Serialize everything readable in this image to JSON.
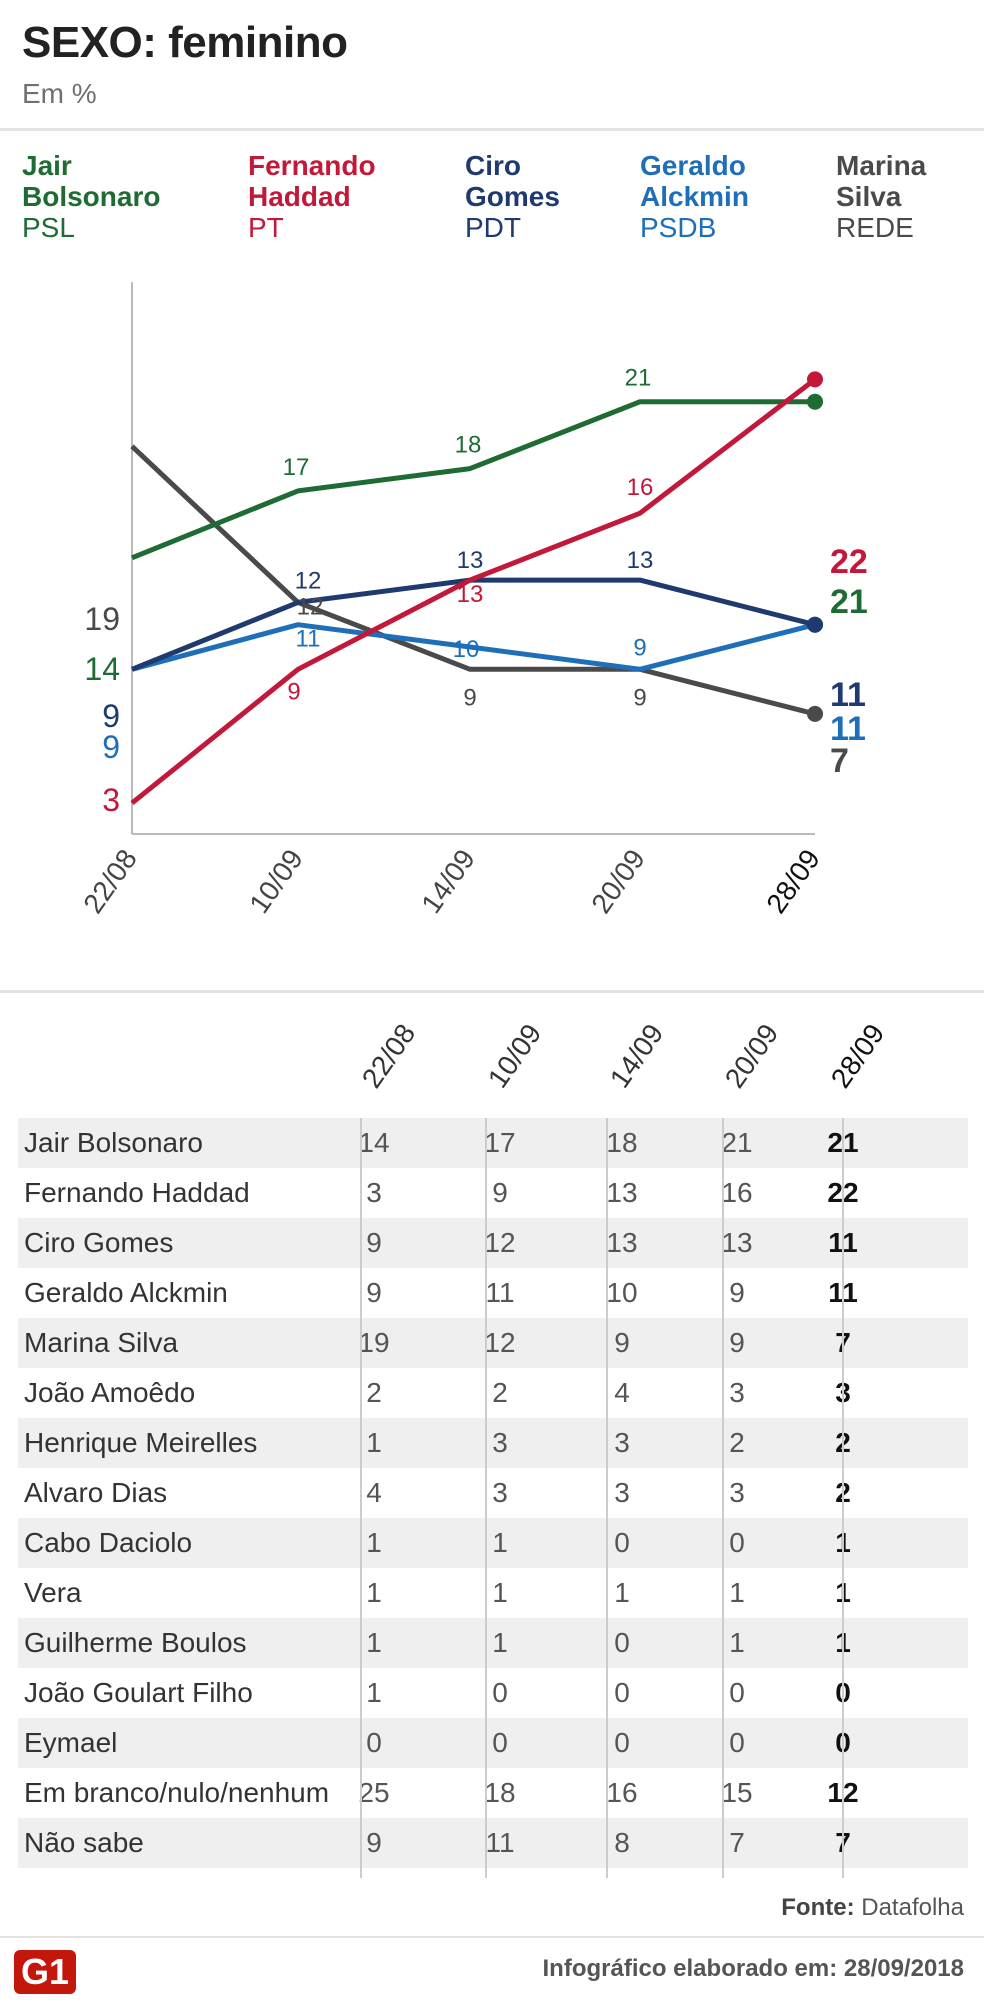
{
  "header": {
    "title": "SEXO: feminino",
    "subtitle": "Em %"
  },
  "legend": [
    {
      "name_line1": "Jair",
      "name_line2": "Bolsonaro",
      "party": "PSL",
      "color": "#1e6b33"
    },
    {
      "name_line1": "Fernando",
      "name_line2": "Haddad",
      "party": "PT",
      "color": "#c2183a"
    },
    {
      "name_line1": "Ciro",
      "name_line2": "Gomes",
      "party": "PDT",
      "color": "#1f3a6e"
    },
    {
      "name_line1": "Geraldo",
      "name_line2": "Alckmin",
      "party": "PSDB",
      "color": "#1f6fb8"
    },
    {
      "name_line1": "Marina",
      "name_line2": "Silva",
      "party": "REDE",
      "color": "#4a4a4a"
    }
  ],
  "chart_data": {
    "type": "line",
    "title": "SEXO: feminino",
    "ylabel": "Em %",
    "categories": [
      "22/08",
      "10/09",
      "14/09",
      "20/09",
      "28/09"
    ],
    "series": [
      {
        "name": "Jair Bolsonaro",
        "color": "#1e6b33",
        "values": [
          14,
          17,
          18,
          21,
          21
        ]
      },
      {
        "name": "Fernando Haddad",
        "color": "#c2183a",
        "values": [
          3,
          9,
          13,
          16,
          22
        ]
      },
      {
        "name": "Ciro Gomes",
        "color": "#1f3a6e",
        "values": [
          9,
          12,
          13,
          13,
          11
        ]
      },
      {
        "name": "Geraldo Alckmin",
        "color": "#1f6fb8",
        "values": [
          9,
          11,
          10,
          9,
          11
        ]
      },
      {
        "name": "Marina Silva",
        "color": "#4a4a4a",
        "values": [
          19,
          12,
          9,
          9,
          7
        ]
      }
    ],
    "inline_labels": [
      {
        "series": 0,
        "point": 1,
        "text": "17"
      },
      {
        "series": 0,
        "point": 2,
        "text": "18"
      },
      {
        "series": 0,
        "point": 3,
        "text": "21"
      },
      {
        "series": 1,
        "point": 1,
        "text": "9"
      },
      {
        "series": 1,
        "point": 2,
        "text": "13"
      },
      {
        "series": 1,
        "point": 3,
        "text": "16"
      },
      {
        "series": 2,
        "point": 1,
        "text": "12"
      },
      {
        "series": 2,
        "point": 2,
        "text": "13"
      },
      {
        "series": 2,
        "point": 3,
        "text": "13"
      },
      {
        "series": 3,
        "point": 1,
        "text": "11"
      },
      {
        "series": 3,
        "point": 2,
        "text": "10"
      },
      {
        "series": 3,
        "point": 3,
        "text": "9"
      },
      {
        "series": 4,
        "point": 1,
        "text": "12"
      },
      {
        "series": 4,
        "point": 2,
        "text": "9"
      },
      {
        "series": 4,
        "point": 3,
        "text": "9"
      }
    ],
    "start_labels": [
      {
        "series": 4,
        "text": "19"
      },
      {
        "series": 0,
        "text": "14"
      },
      {
        "series": 2,
        "text": "9"
      },
      {
        "series": 3,
        "text": "9"
      },
      {
        "series": 1,
        "text": "3"
      }
    ],
    "end_labels": [
      {
        "series": 1,
        "text": "22"
      },
      {
        "series": 0,
        "text": "21"
      },
      {
        "series": 2,
        "text": "11"
      },
      {
        "series": 3,
        "text": "11"
      },
      {
        "series": 4,
        "text": "7"
      }
    ]
  },
  "table": {
    "columns": [
      "22/08",
      "10/09",
      "14/09",
      "20/09",
      "28/09"
    ],
    "rows": [
      {
        "name": "Jair Bolsonaro",
        "values": [
          "14",
          "17",
          "18",
          "21",
          "21"
        ]
      },
      {
        "name": "Fernando Haddad",
        "values": [
          "3",
          "9",
          "13",
          "16",
          "22"
        ]
      },
      {
        "name": "Ciro Gomes",
        "values": [
          "9",
          "12",
          "13",
          "13",
          "11"
        ]
      },
      {
        "name": "Geraldo Alckmin",
        "values": [
          "9",
          "11",
          "10",
          "9",
          "11"
        ]
      },
      {
        "name": "Marina Silva",
        "values": [
          "19",
          "12",
          "9",
          "9",
          "7"
        ]
      },
      {
        "name": "João Amoêdo",
        "values": [
          "2",
          "2",
          "4",
          "3",
          "3"
        ]
      },
      {
        "name": "Henrique Meirelles",
        "values": [
          "1",
          "3",
          "3",
          "2",
          "2"
        ]
      },
      {
        "name": "Alvaro Dias",
        "values": [
          "4",
          "3",
          "3",
          "3",
          "2"
        ]
      },
      {
        "name": "Cabo Daciolo",
        "values": [
          "1",
          "1",
          "0",
          "0",
          "1"
        ]
      },
      {
        "name": "Vera",
        "values": [
          "1",
          "1",
          "1",
          "1",
          "1"
        ]
      },
      {
        "name": "Guilherme Boulos",
        "values": [
          "1",
          "1",
          "0",
          "1",
          "1"
        ]
      },
      {
        "name": "João Goulart Filho",
        "values": [
          "1",
          "0",
          "0",
          "0",
          "0"
        ]
      },
      {
        "name": "Eymael",
        "values": [
          "0",
          "0",
          "0",
          "0",
          "0"
        ]
      },
      {
        "name": "Em branco/nulo/nenhum",
        "values": [
          "25",
          "18",
          "16",
          "15",
          "12"
        ]
      },
      {
        "name": "Não sabe",
        "values": [
          "9",
          "11",
          "8",
          "7",
          "7"
        ]
      }
    ]
  },
  "source": {
    "label": "Fonte:",
    "value": "Datafolha"
  },
  "footer": {
    "logo": "G1",
    "label": "Infográfico elaborado em:",
    "date": "28/09/2018"
  }
}
